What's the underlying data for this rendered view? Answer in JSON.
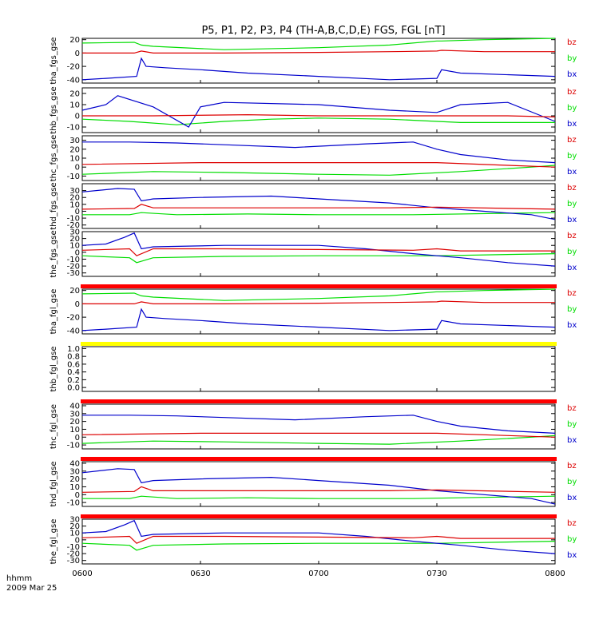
{
  "title": "P5, P1, P2, P3, P4 (TH-A,B,C,D,E) FGS, FGL [nT]",
  "footer": {
    "line1": "hhmm",
    "line2": "2009 Mar 25"
  },
  "colors": {
    "bx": "#0000cc",
    "by": "#00dd00",
    "bz": "#dd0000",
    "bar_red": "#ff0000",
    "bar_yellow": "#ffff00"
  },
  "chart_data": {
    "type": "line",
    "x_range": [
      "06:00",
      "08:00"
    ],
    "x_ticks": [
      "0600",
      "0630",
      "0700",
      "0730",
      "0800"
    ],
    "x_tick_hours": [
      6.0,
      6.5,
      7.0,
      7.5,
      8.0
    ],
    "legend": [
      "bz",
      "by",
      "bx"
    ],
    "panels": [
      {
        "ylabel": "tha_fgs_gse",
        "ylim": [
          -45,
          22
        ],
        "yticks": [
          20,
          0,
          -20,
          -40
        ],
        "series": {
          "bz": {
            "x": [
              6.0,
              6.22,
              6.25,
              6.3,
              6.6,
              7.0,
              7.3,
              7.5,
              7.52,
              7.7,
              8.0
            ],
            "y": [
              0,
              0,
              3,
              0,
              0,
              1,
              2,
              3,
              4,
              2,
              2
            ]
          },
          "by": {
            "x": [
              6.0,
              6.22,
              6.25,
              6.3,
              6.6,
              7.0,
              7.3,
              7.5,
              7.52,
              7.7,
              8.0
            ],
            "y": [
              15,
              16,
              12,
              10,
              5,
              8,
              12,
              18,
              18,
              20,
              22
            ]
          },
          "bx": {
            "x": [
              6.0,
              6.1,
              6.23,
              6.25,
              6.27,
              6.35,
              6.5,
              6.7,
              7.0,
              7.3,
              7.5,
              7.52,
              7.6,
              8.0
            ],
            "y": [
              -40,
              -38,
              -35,
              -8,
              -20,
              -22,
              -25,
              -30,
              -35,
              -40,
              -38,
              -25,
              -30,
              -35
            ]
          }
        }
      },
      {
        "ylabel": "thb_fgs_gse",
        "ylim": [
          -15,
          25
        ],
        "yticks": [
          20,
          10,
          0,
          -10
        ],
        "series": {
          "bz": {
            "x": [
              6.0,
              6.3,
              6.7,
              7.0,
              7.5,
              7.8,
              8.0
            ],
            "y": [
              0,
              0,
              1,
              0,
              0,
              0,
              -1
            ]
          },
          "by": {
            "x": [
              6.0,
              6.2,
              6.4,
              6.6,
              6.8,
              7.0,
              7.3,
              7.6,
              8.0
            ],
            "y": [
              -3,
              -5,
              -8,
              -5,
              -3,
              -2,
              -3,
              -6,
              -6
            ]
          },
          "bx": {
            "x": [
              6.0,
              6.1,
              6.15,
              6.3,
              6.45,
              6.5,
              6.55,
              6.6,
              7.0,
              7.3,
              7.5,
              7.6,
              7.8,
              8.0
            ],
            "y": [
              5,
              10,
              18,
              8,
              -10,
              8,
              10,
              12,
              10,
              5,
              3,
              10,
              12,
              -5
            ]
          }
        }
      },
      {
        "ylabel": "thc_fgs_gse",
        "ylim": [
          -15,
          35
        ],
        "yticks": [
          30,
          20,
          10,
          0,
          -10
        ],
        "series": {
          "bz": {
            "x": [
              6.0,
              6.5,
              7.0,
              7.5,
              7.8,
              8.0
            ],
            "y": [
              3,
              5,
              5,
              5,
              2,
              0
            ]
          },
          "by": {
            "x": [
              6.0,
              6.3,
              6.6,
              7.0,
              7.3,
              7.6,
              7.9,
              8.0
            ],
            "y": [
              -8,
              -5,
              -6,
              -8,
              -9,
              -5,
              0,
              2
            ]
          },
          "bx": {
            "x": [
              6.0,
              6.2,
              6.4,
              6.6,
              6.9,
              7.2,
              7.4,
              7.5,
              7.6,
              7.8,
              8.0
            ],
            "y": [
              28,
              28,
              27,
              25,
              22,
              26,
              28,
              20,
              14,
              8,
              5
            ]
          }
        }
      },
      {
        "ylabel": "thd_fgs_gse",
        "ylim": [
          -25,
          40
        ],
        "yticks": [
          30,
          20,
          10,
          0,
          -10,
          -20
        ],
        "series": {
          "bz": {
            "x": [
              6.0,
              6.22,
              6.25,
              6.3,
              6.6,
              7.0,
              7.3,
              7.5,
              8.0
            ],
            "y": [
              3,
              4,
              10,
              5,
              5,
              5,
              5,
              6,
              3
            ]
          },
          "by": {
            "x": [
              6.0,
              6.2,
              6.25,
              6.4,
              6.7,
              7.0,
              7.4,
              7.8,
              8.0
            ],
            "y": [
              -5,
              -5,
              -2,
              -5,
              -4,
              -5,
              -5,
              -3,
              -2
            ]
          },
          "bx": {
            "x": [
              6.0,
              6.15,
              6.22,
              6.25,
              6.3,
              6.5,
              6.8,
              7.0,
              7.3,
              7.5,
              7.7,
              7.9,
              8.0
            ],
            "y": [
              28,
              33,
              32,
              15,
              18,
              20,
              22,
              18,
              12,
              5,
              0,
              -5,
              -12
            ]
          }
        }
      },
      {
        "ylabel": "the_fgs_gse",
        "ylim": [
          -35,
          30
        ],
        "yticks": [
          30,
          20,
          10,
          0,
          -10,
          -20,
          -30
        ],
        "series": {
          "bz": {
            "x": [
              6.0,
              6.2,
              6.23,
              6.3,
              6.6,
              7.0,
              7.4,
              7.5,
              7.6,
              8.0
            ],
            "y": [
              3,
              5,
              -5,
              5,
              5,
              4,
              3,
              5,
              2,
              2
            ]
          },
          "by": {
            "x": [
              6.0,
              6.2,
              6.23,
              6.3,
              6.6,
              7.0,
              7.5,
              8.0
            ],
            "y": [
              -5,
              -8,
              -15,
              -8,
              -6,
              -5,
              -5,
              -2
            ]
          },
          "bx": {
            "x": [
              6.0,
              6.1,
              6.18,
              6.22,
              6.25,
              6.3,
              6.6,
              7.0,
              7.2,
              7.4,
              7.6,
              7.8,
              8.0
            ],
            "y": [
              10,
              12,
              22,
              28,
              5,
              8,
              10,
              10,
              5,
              -2,
              -8,
              -15,
              -20
            ]
          }
        }
      },
      {
        "ylabel": "tha_fgl_gse",
        "ylim": [
          -45,
          22
        ],
        "yticks": [
          20,
          0,
          -20,
          -40
        ],
        "top_bar": "red",
        "series": {
          "bz": {
            "x": [
              6.0,
              6.22,
              6.25,
              6.3,
              6.6,
              7.0,
              7.3,
              7.5,
              7.52,
              7.7,
              8.0
            ],
            "y": [
              0,
              0,
              3,
              0,
              0,
              1,
              2,
              3,
              4,
              2,
              2
            ]
          },
          "by": {
            "x": [
              6.0,
              6.22,
              6.25,
              6.3,
              6.6,
              7.0,
              7.3,
              7.5,
              7.52,
              7.7,
              8.0
            ],
            "y": [
              15,
              16,
              12,
              10,
              5,
              8,
              12,
              18,
              18,
              20,
              22
            ]
          },
          "bx": {
            "x": [
              6.0,
              6.1,
              6.23,
              6.25,
              6.27,
              6.35,
              6.5,
              6.7,
              7.0,
              7.3,
              7.5,
              7.52,
              7.6,
              8.0
            ],
            "y": [
              -40,
              -38,
              -35,
              -8,
              -20,
              -22,
              -25,
              -30,
              -35,
              -40,
              -38,
              -25,
              -30,
              -35
            ]
          }
        }
      },
      {
        "ylabel": "thb_fgl_gse",
        "ylim": [
          -0.1,
          1.05
        ],
        "yticks": [
          1.0,
          0.8,
          0.6,
          0.4,
          0.2,
          0.0
        ],
        "tick_format": "fixed1",
        "no_legend": true,
        "top_bar": "yellow",
        "series": {}
      },
      {
        "ylabel": "thc_fgl_gse",
        "ylim": [
          -15,
          42
        ],
        "yticks": [
          40,
          30,
          20,
          10,
          0,
          -10
        ],
        "top_bar": "red",
        "series": {
          "bz": {
            "x": [
              6.0,
              6.5,
              7.0,
              7.5,
              7.8,
              8.0
            ],
            "y": [
              3,
              5,
              5,
              5,
              2,
              0
            ]
          },
          "by": {
            "x": [
              6.0,
              6.3,
              6.6,
              7.0,
              7.3,
              7.6,
              7.9,
              8.0
            ],
            "y": [
              -8,
              -5,
              -6,
              -8,
              -9,
              -5,
              0,
              2
            ]
          },
          "bx": {
            "x": [
              6.0,
              6.2,
              6.4,
              6.6,
              6.9,
              7.2,
              7.4,
              7.5,
              7.6,
              7.8,
              8.0
            ],
            "y": [
              28,
              28,
              27,
              25,
              22,
              26,
              28,
              20,
              14,
              8,
              5
            ]
          }
        }
      },
      {
        "ylabel": "thd_fgl_gse",
        "ylim": [
          -15,
          42
        ],
        "yticks": [
          40,
          30,
          20,
          10,
          0,
          -10
        ],
        "top_bar": "red",
        "series": {
          "bz": {
            "x": [
              6.0,
              6.22,
              6.25,
              6.3,
              6.6,
              7.0,
              7.3,
              7.5,
              8.0
            ],
            "y": [
              3,
              4,
              10,
              5,
              5,
              5,
              5,
              6,
              3
            ]
          },
          "by": {
            "x": [
              6.0,
              6.2,
              6.25,
              6.4,
              6.7,
              7.0,
              7.4,
              7.8,
              8.0
            ],
            "y": [
              -5,
              -5,
              -2,
              -5,
              -4,
              -5,
              -5,
              -3,
              -2
            ]
          },
          "bx": {
            "x": [
              6.0,
              6.15,
              6.22,
              6.25,
              6.3,
              6.5,
              6.8,
              7.0,
              7.3,
              7.5,
              7.7,
              7.9,
              8.0
            ],
            "y": [
              28,
              33,
              32,
              15,
              18,
              20,
              22,
              18,
              12,
              5,
              0,
              -5,
              -12
            ]
          }
        }
      },
      {
        "ylabel": "the_fgl_gse",
        "ylim": [
          -35,
          30
        ],
        "yticks": [
          30,
          20,
          10,
          0,
          -10,
          -20,
          -30
        ],
        "top_bar": "red",
        "series": {
          "bz": {
            "x": [
              6.0,
              6.2,
              6.23,
              6.3,
              6.6,
              7.0,
              7.4,
              7.5,
              7.6,
              8.0
            ],
            "y": [
              3,
              5,
              -5,
              5,
              5,
              4,
              3,
              5,
              2,
              2
            ]
          },
          "by": {
            "x": [
              6.0,
              6.2,
              6.23,
              6.3,
              6.6,
              7.0,
              7.5,
              8.0
            ],
            "y": [
              -5,
              -8,
              -15,
              -8,
              -6,
              -5,
              -5,
              -2
            ]
          },
          "bx": {
            "x": [
              6.0,
              6.1,
              6.18,
              6.22,
              6.25,
              6.3,
              6.6,
              7.0,
              7.2,
              7.4,
              7.6,
              7.8,
              8.0
            ],
            "y": [
              10,
              12,
              22,
              28,
              5,
              8,
              10,
              10,
              5,
              -2,
              -8,
              -15,
              -20
            ]
          }
        }
      }
    ]
  }
}
